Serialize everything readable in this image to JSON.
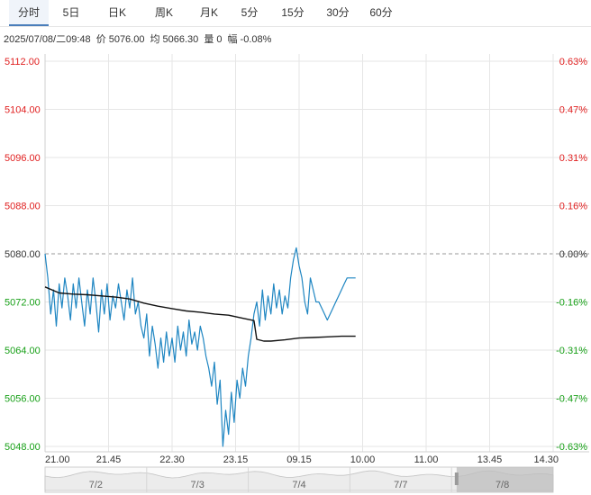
{
  "tabs": [
    {
      "label": "分时",
      "active": true
    },
    {
      "label": "5日",
      "active": false
    },
    {
      "label": "日K",
      "active": false
    },
    {
      "label": "周K",
      "active": false
    },
    {
      "label": "月K",
      "active": false
    },
    {
      "label": "5分",
      "active": false
    },
    {
      "label": "15分",
      "active": false
    },
    {
      "label": "30分",
      "active": false
    },
    {
      "label": "60分",
      "active": false
    }
  ],
  "info": {
    "datetime": "2025/07/08/二09:48",
    "price_label": "价",
    "price": "5076.00",
    "avg_label": "均",
    "avg": "5066.30",
    "vol_label": "量",
    "vol": "0",
    "chg_label": "幅",
    "chg": "-0.08%"
  },
  "colors": {
    "up": "#e02020",
    "down": "#18a018",
    "neutral": "#333333",
    "price_line": "#1f86c2",
    "avg_line": "#111111",
    "grid": "#e6e6e6",
    "navigator": "#bdbdbd"
  },
  "chart_data": {
    "type": "line",
    "reference_price": 5080,
    "y_left_ticks": [
      "5112.00",
      "5104.00",
      "5096.00",
      "5088.00",
      "5080.00",
      "5072.00",
      "5064.00",
      "5056.00",
      "5048.00"
    ],
    "y_right_ticks": [
      "0.63%",
      "0.47%",
      "0.31%",
      "0.16%",
      "0.00%",
      "-0.16%",
      "-0.31%",
      "-0.47%",
      "-0.63%"
    ],
    "ylim": [
      5048,
      5112
    ],
    "x_ticks": [
      "21.00",
      "21.45",
      "22.30",
      "23.15",
      "09.15",
      "10.00",
      "11.00",
      "13.45",
      "14.30"
    ],
    "x_count": 360,
    "series": [
      {
        "role": "price",
        "x": [
          0,
          2,
          4,
          6,
          8,
          10,
          12,
          14,
          16,
          18,
          20,
          22,
          24,
          26,
          28,
          30,
          32,
          34,
          36,
          38,
          40,
          42,
          44,
          46,
          48,
          50,
          52,
          54,
          56,
          58,
          60,
          62,
          64,
          66,
          68,
          70,
          72,
          74,
          76,
          78,
          80,
          82,
          84,
          86,
          88,
          90,
          92,
          94,
          96,
          98,
          100,
          102,
          104,
          106,
          108,
          110,
          112,
          114,
          116,
          118,
          120,
          122,
          124,
          126,
          128,
          130,
          132,
          134,
          136,
          138,
          140,
          142,
          144,
          146,
          148,
          150,
          152,
          154,
          156,
          158,
          160,
          162,
          164,
          166,
          168,
          170,
          172,
          174,
          176,
          178,
          180,
          182,
          184,
          186,
          188,
          190,
          192,
          194,
          196,
          198,
          200,
          202,
          204,
          206,
          208,
          210,
          212,
          214,
          216,
          218,
          220
        ],
        "values": [
          5080,
          5076,
          5070,
          5074,
          5068,
          5075,
          5071,
          5076,
          5073,
          5069,
          5075,
          5071,
          5076,
          5072,
          5068,
          5074,
          5070,
          5076,
          5072,
          5067,
          5074,
          5070,
          5075,
          5069,
          5073,
          5071,
          5075,
          5072,
          5069,
          5074,
          5071,
          5076,
          5070,
          5072,
          5068,
          5066,
          5070,
          5063,
          5068,
          5065,
          5061,
          5066,
          5062,
          5067,
          5063,
          5066,
          5062,
          5068,
          5064,
          5067,
          5063,
          5069,
          5065,
          5067,
          5064,
          5068,
          5066,
          5063,
          5061,
          5058,
          5062,
          5055,
          5059,
          5048,
          5054,
          5050,
          5057,
          5052,
          5059,
          5056,
          5061,
          5058,
          5063,
          5066,
          5070,
          5072,
          5068,
          5074,
          5069,
          5073,
          5070,
          5075,
          5071,
          5074,
          5070,
          5073,
          5071,
          5076,
          5079,
          5081,
          5078,
          5076,
          5072,
          5070,
          5076,
          5074,
          5072,
          5072,
          5071,
          5070,
          5069,
          5070,
          5071,
          5072,
          5073,
          5074,
          5075,
          5076,
          5076,
          5076,
          5076
        ]
      },
      {
        "role": "average",
        "x": [
          0,
          10,
          20,
          30,
          40,
          50,
          60,
          70,
          80,
          90,
          100,
          110,
          120,
          130,
          140,
          148,
          150,
          155,
          160,
          170,
          180,
          190,
          200,
          210,
          220
        ],
        "values": [
          5074.5,
          5073.5,
          5073.3,
          5073.2,
          5073.0,
          5072.8,
          5072.5,
          5071.8,
          5071.3,
          5070.9,
          5070.5,
          5070.3,
          5070.0,
          5069.8,
          5069.3,
          5068.9,
          5065.8,
          5065.5,
          5065.5,
          5065.7,
          5066.0,
          5066.1,
          5066.2,
          5066.3,
          5066.3
        ]
      }
    ],
    "navigator": {
      "labels": [
        "7/2",
        "7/3",
        "7/4",
        "7/7",
        "7/8"
      ],
      "selected": "7/8"
    },
    "grid": true
  }
}
